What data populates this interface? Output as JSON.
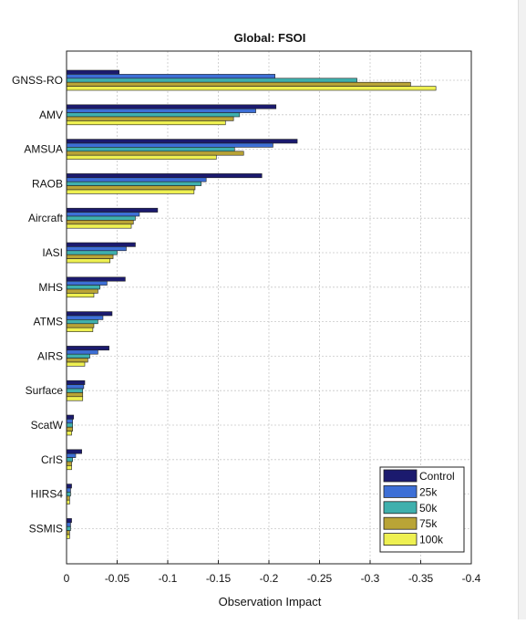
{
  "chart_data": {
    "type": "bar",
    "orientation": "horizontal",
    "title": "Global: FSOI",
    "xlabel": "Observation Impact",
    "ylabel": "",
    "xlim": [
      0,
      -0.4
    ],
    "xticks": [
      0,
      -0.05,
      -0.1,
      -0.15,
      -0.2,
      -0.25,
      -0.3,
      -0.35,
      -0.4
    ],
    "xtick_labels": [
      "0",
      "-0.05",
      "-0.1",
      "-0.15",
      "-0.2",
      "-0.25",
      "-0.3",
      "-0.35",
      "-0.4"
    ],
    "grid": true,
    "legend_position": "bottom-right",
    "categories": [
      "GNSS-RO",
      "AMV",
      "AMSUA",
      "RAOB",
      "Aircraft",
      "IASI",
      "MHS",
      "ATMS",
      "AIRS",
      "Surface",
      "ScatW",
      "CrIS",
      "HIRS4",
      "SSMIS"
    ],
    "series": [
      {
        "name": "Control",
        "color": "#1b1a6e",
        "values": [
          -0.052,
          -0.207,
          -0.228,
          -0.193,
          -0.09,
          -0.068,
          -0.058,
          -0.045,
          -0.042,
          -0.018,
          -0.007,
          -0.015,
          -0.005,
          -0.005
        ]
      },
      {
        "name": "25k",
        "color": "#3d6fd6",
        "values": [
          -0.206,
          -0.187,
          -0.204,
          -0.138,
          -0.072,
          -0.059,
          -0.04,
          -0.036,
          -0.031,
          -0.017,
          -0.006,
          -0.009,
          -0.004,
          -0.004
        ]
      },
      {
        "name": "50k",
        "color": "#3fb0ad",
        "values": [
          -0.287,
          -0.171,
          -0.166,
          -0.133,
          -0.068,
          -0.05,
          -0.033,
          -0.031,
          -0.023,
          -0.016,
          -0.006,
          -0.006,
          -0.004,
          -0.004
        ]
      },
      {
        "name": "75k",
        "color": "#b9a436",
        "values": [
          -0.34,
          -0.165,
          -0.175,
          -0.127,
          -0.066,
          -0.046,
          -0.031,
          -0.027,
          -0.021,
          -0.016,
          -0.006,
          -0.005,
          -0.003,
          -0.003
        ]
      },
      {
        "name": "100k",
        "color": "#eef051",
        "values": [
          -0.365,
          -0.157,
          -0.148,
          -0.126,
          -0.064,
          -0.043,
          -0.027,
          -0.026,
          -0.018,
          -0.016,
          -0.005,
          -0.005,
          -0.003,
          -0.003
        ]
      }
    ]
  }
}
